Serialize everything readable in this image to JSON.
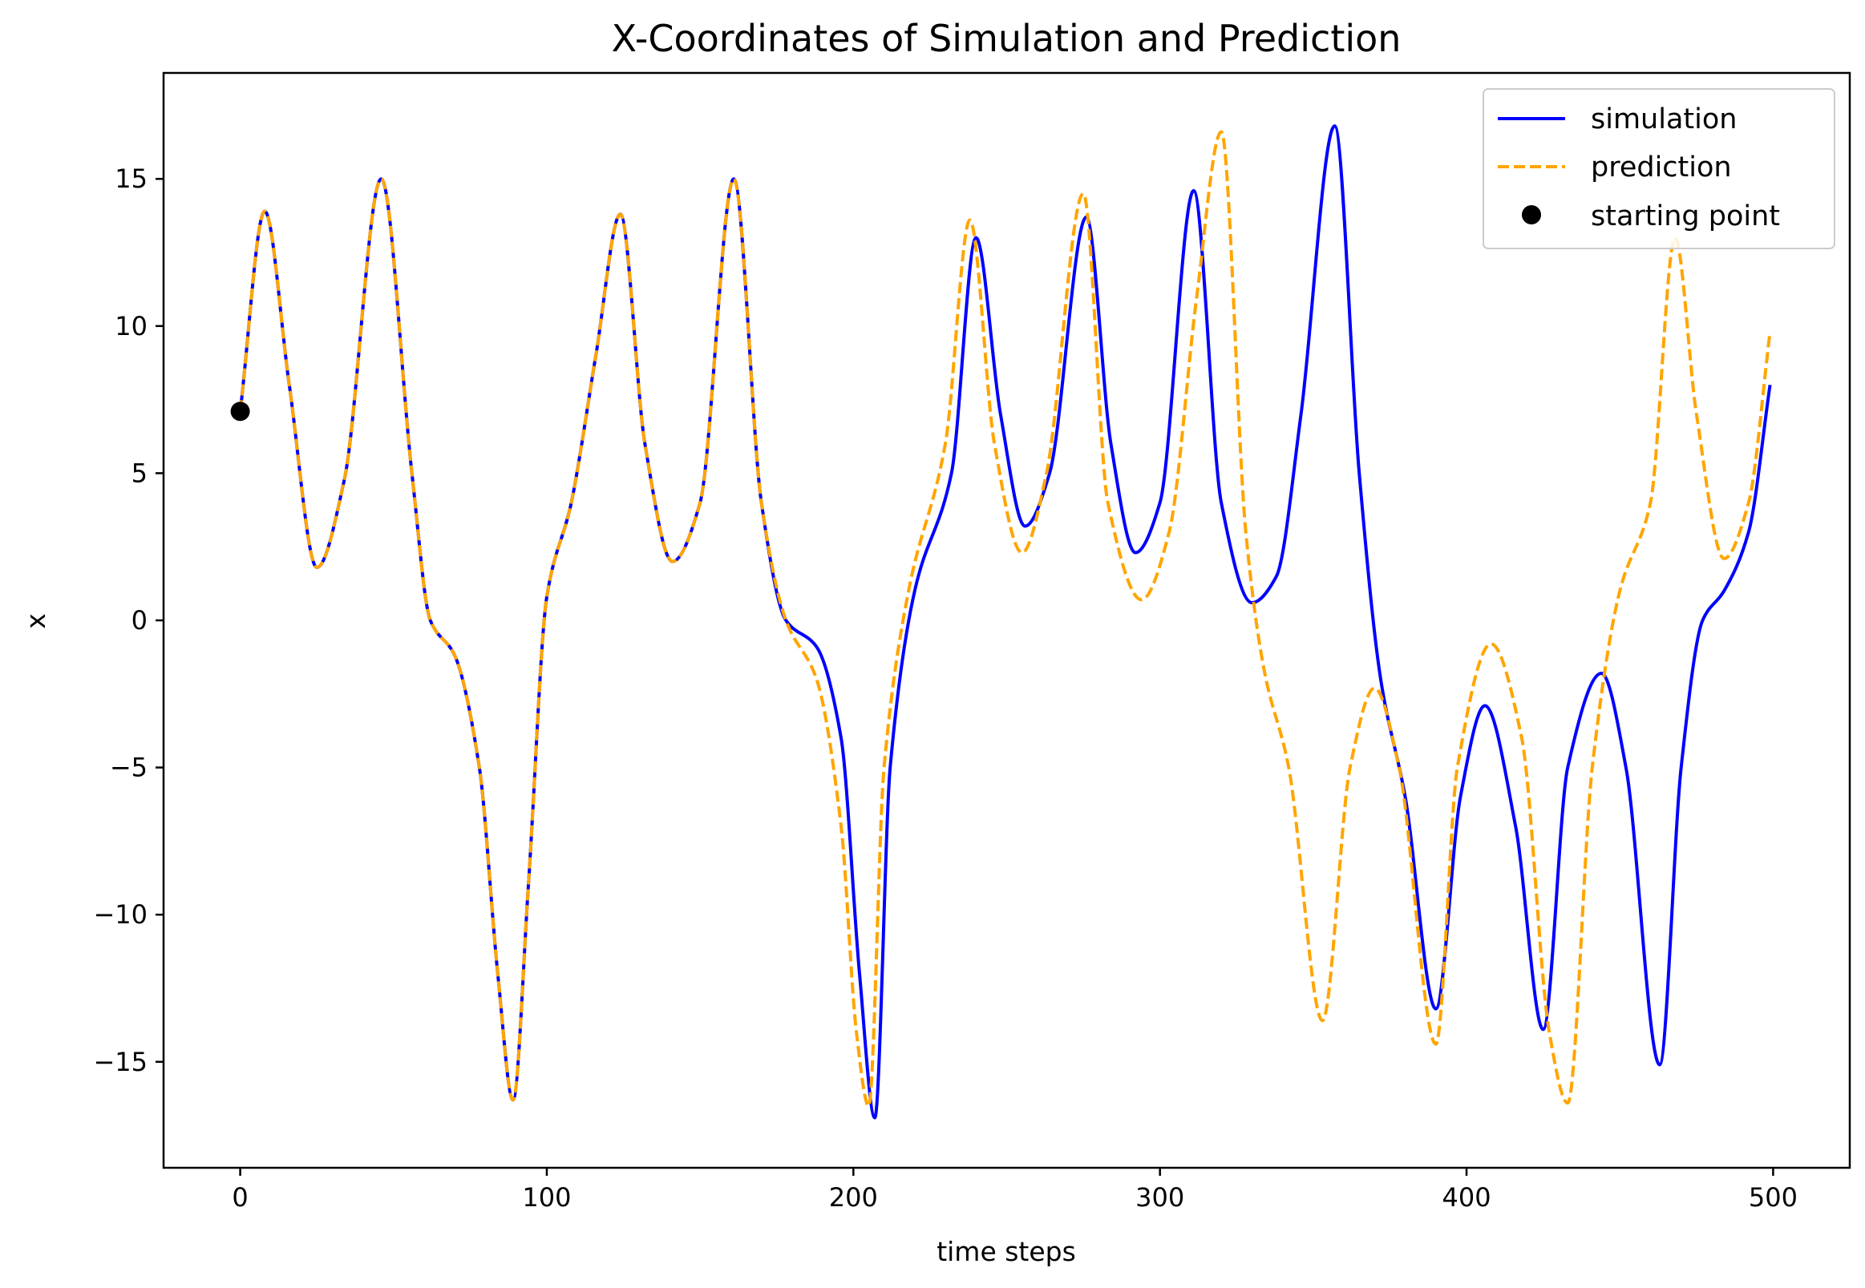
{
  "chart_data": {
    "type": "line",
    "title": "X-Coordinates of Simulation and Prediction",
    "xlabel": "time steps",
    "ylabel": "x",
    "xlim": [
      -25,
      525
    ],
    "ylim": [
      -18.6,
      18.6
    ],
    "xticks": [
      0,
      100,
      200,
      300,
      400,
      500
    ],
    "yticks": [
      -15,
      -10,
      -5,
      0,
      5,
      10,
      15
    ],
    "xtick_labels": [
      "0",
      "100",
      "200",
      "300",
      "400",
      "500"
    ],
    "ytick_labels": [
      "−15",
      "−10",
      "−5",
      "0",
      "5",
      "10",
      "15"
    ],
    "grid": false,
    "legend_position": "top-right",
    "series": [
      {
        "name": "simulation",
        "color": "#0000ff",
        "style": "solid",
        "x": [
          0,
          8,
          16,
          25,
          34,
          46,
          56,
          62,
          70,
          78,
          84,
          89,
          94,
          100,
          108,
          116,
          124,
          132,
          141,
          150,
          161,
          170,
          178,
          188,
          196,
          202,
          207,
          212,
          220,
          232,
          240,
          248,
          256,
          264,
          276,
          284,
          292,
          300,
          311,
          320,
          330,
          338,
          346,
          357,
          365,
          372,
          380,
          390,
          398,
          406,
          416,
          425,
          433,
          444,
          452,
          463,
          470,
          477,
          484,
          492,
          499
        ],
        "y": [
          7.1,
          13.9,
          8.0,
          1.8,
          4.8,
          15.0,
          5.0,
          0.0,
          -1.2,
          -5.0,
          -12.0,
          -16.3,
          -9.0,
          0.8,
          4.0,
          9.0,
          13.8,
          6.0,
          2.0,
          4.0,
          15.0,
          4.0,
          0.0,
          -0.9,
          -4.0,
          -12.0,
          -16.9,
          -5.0,
          1.0,
          5.0,
          13.0,
          7.0,
          3.2,
          5.0,
          13.7,
          6.0,
          2.3,
          4.0,
          14.6,
          4.0,
          0.6,
          1.5,
          7.0,
          16.8,
          5.0,
          -2.0,
          -6.0,
          -13.2,
          -6.0,
          -2.9,
          -7.0,
          -13.9,
          -5.0,
          -1.8,
          -5.0,
          -15.1,
          -5.0,
          0.0,
          1.0,
          3.0,
          8.0
        ]
      },
      {
        "name": "prediction",
        "color": "#ffa500",
        "style": "dashed",
        "x": [
          0,
          8,
          16,
          25,
          34,
          46,
          56,
          62,
          70,
          78,
          84,
          89,
          94,
          100,
          108,
          116,
          124,
          132,
          141,
          150,
          161,
          170,
          178,
          188,
          196,
          201,
          205,
          210,
          218,
          230,
          238,
          246,
          255,
          263,
          275,
          283,
          294,
          303,
          312,
          320,
          328,
          334,
          342,
          353,
          362,
          370,
          378,
          390,
          397,
          408,
          418,
          427,
          433,
          441,
          450,
          460,
          468,
          475,
          484,
          492,
          499
        ],
        "y": [
          7.1,
          13.9,
          8.0,
          1.8,
          4.8,
          15.0,
          5.0,
          0.0,
          -1.2,
          -5.0,
          -12.0,
          -16.3,
          -9.0,
          0.8,
          4.0,
          9.0,
          13.8,
          6.0,
          2.0,
          4.0,
          15.0,
          4.0,
          0.0,
          -2.0,
          -7.0,
          -14.0,
          -16.5,
          -5.0,
          1.0,
          6.0,
          13.6,
          6.0,
          2.3,
          5.0,
          14.5,
          4.0,
          0.7,
          3.0,
          11.0,
          16.6,
          3.0,
          -1.7,
          -5.0,
          -13.6,
          -5.0,
          -2.3,
          -5.0,
          -14.4,
          -5.0,
          -0.8,
          -4.0,
          -14.0,
          -16.4,
          -5.0,
          1.0,
          4.0,
          13.0,
          7.0,
          2.1,
          4.0,
          9.8
        ]
      }
    ],
    "markers": [
      {
        "name": "starting point",
        "color": "#000000",
        "x": 0,
        "y": 7.1
      }
    ]
  }
}
